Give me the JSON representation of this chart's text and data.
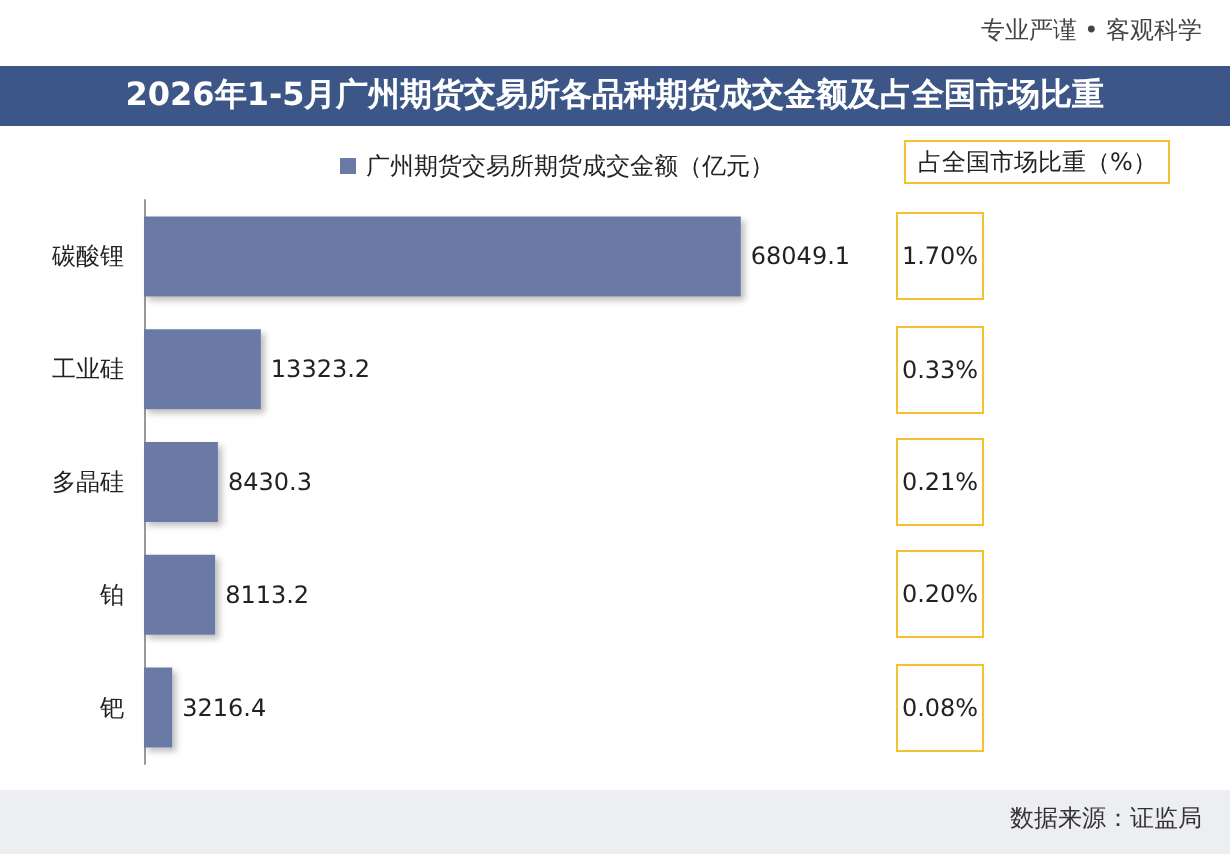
{
  "chart_data": {
    "type": "bar",
    "orientation": "horizontal",
    "title": "2026年1-5月广州期货交易所各品种期货成交金额及占全国市场比重",
    "categories": [
      "碳酸锂",
      "工业硅",
      "多晶硅",
      "铂",
      "钯"
    ],
    "series": [
      {
        "name": "广州期货交易所期货成交金额（亿元）",
        "color": "#6a7aa5",
        "values": [
          68049.1,
          13323.2,
          8430.3,
          8113.2,
          3216.4
        ]
      }
    ],
    "data_labels": true,
    "legend": "top",
    "annotations": [
      "专业严谨 • 客观科学",
      "数据来源：证监局",
      "占全国市场比重（%）",
      "1.70%",
      "0.33%",
      "0.21%",
      "0.20%",
      "0.08%"
    ]
  }
}
